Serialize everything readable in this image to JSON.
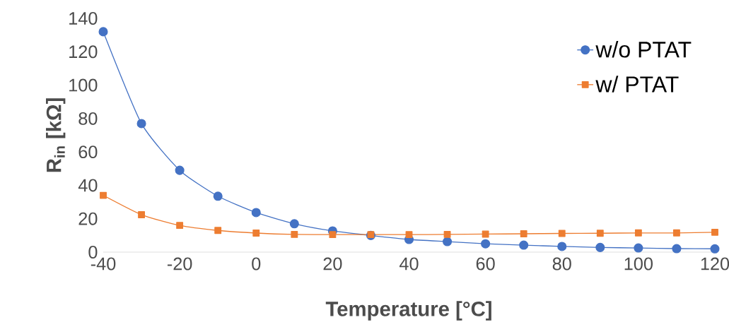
{
  "chart_data": {
    "type": "line",
    "xlabel": "Temperature [°C]",
    "ylabel": "R$_{in}$ [kΩ]",
    "x": [
      -40,
      -30,
      -20,
      -10,
      0,
      10,
      20,
      30,
      40,
      50,
      60,
      70,
      80,
      90,
      100,
      110,
      120
    ],
    "series": [
      {
        "name": "w/o PTAT",
        "color": "#4472c4",
        "marker": "circle",
        "values": [
          132,
          77,
          49,
          33.5,
          23.7,
          17,
          12.7,
          10,
          7.6,
          6.3,
          5,
          4.2,
          3.4,
          2.8,
          2.5,
          2.1,
          2
        ]
      },
      {
        "name": "w/ PTAT",
        "color": "#ed7d31",
        "marker": "square",
        "values": [
          34,
          22.4,
          16,
          13,
          11.4,
          10.6,
          10.5,
          10.5,
          10.5,
          10.6,
          10.8,
          11,
          11.2,
          11.3,
          11.5,
          11.5,
          11.9
        ]
      }
    ],
    "xlim": [
      -40,
      120
    ],
    "ylim": [
      0,
      140
    ],
    "xticks": [
      -40,
      -20,
      0,
      20,
      40,
      60,
      80,
      100,
      120
    ],
    "yticks": [
      0,
      20,
      40,
      60,
      80,
      100,
      120,
      140
    ],
    "grid": false,
    "legend": "top right",
    "line_style": "solid"
  }
}
